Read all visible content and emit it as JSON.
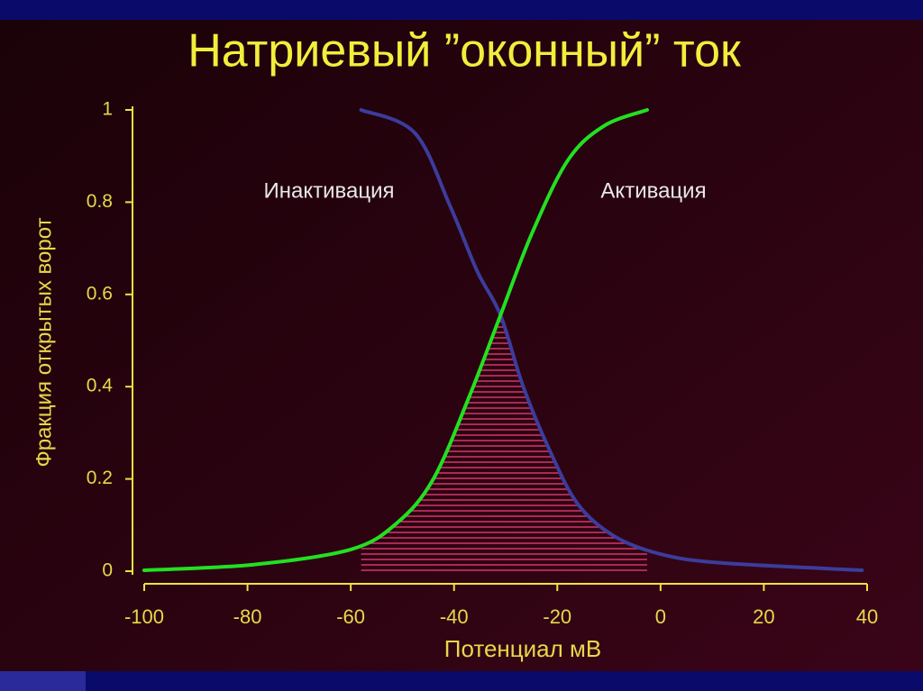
{
  "chart_data": {
    "type": "line",
    "title": "Натриевый ”оконный” ток",
    "x_label": "Потенциал мВ",
    "y_label": "Фракция открытых ворот",
    "annotations": [
      "Инактивация",
      "Активация"
    ],
    "xlim": [
      -100,
      40
    ],
    "xticks": [
      -100,
      -80,
      -60,
      -40,
      -20,
      0,
      20,
      40
    ],
    "ylim": [
      0,
      1
    ],
    "yticks": [
      0,
      0.2,
      0.4,
      0.6,
      0.8,
      1
    ],
    "series": [
      {
        "name": "Инактивация",
        "color": "#3c3c9c",
        "x": [
          -58,
          -47.6,
          -40.7,
          -35.5,
          -31,
          -26.6,
          -21.4,
          -16,
          -9,
          0,
          11.7,
          39
        ],
        "values": [
          1,
          0.95,
          0.79,
          0.65,
          0.555,
          0.4,
          0.26,
          0.145,
          0.076,
          0.037,
          0.018,
          0.002
        ]
      },
      {
        "name": "Активация",
        "color": "#22e022",
        "x": [
          -100,
          -79,
          -60,
          -51,
          -44,
          -37,
          -31,
          -25,
          -18,
          -11,
          -2.6
        ],
        "values": [
          0.002,
          0.014,
          0.047,
          0.105,
          0.2,
          0.38,
          0.555,
          0.73,
          0.89,
          0.965,
          1
        ]
      }
    ]
  }
}
